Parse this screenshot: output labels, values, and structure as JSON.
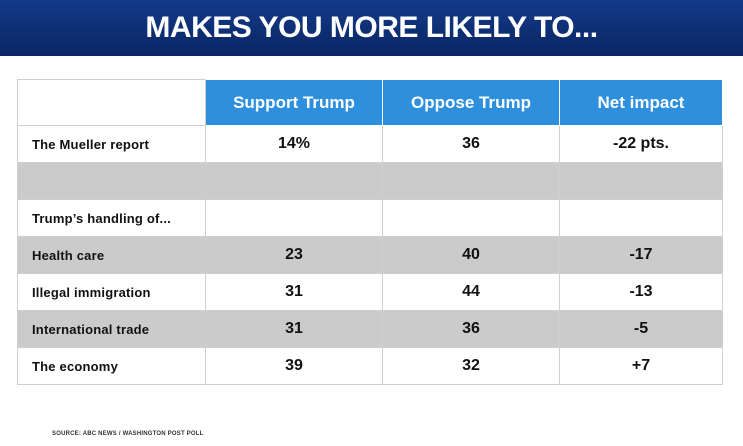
{
  "title": "MAKES YOU MORE LIKELY TO...",
  "source": "SOURCE: ABC NEWS / WASHINGTON POST POLL",
  "chart_data": {
    "type": "table",
    "columns": [
      "Support Trump",
      "Oppose Trump",
      "Net impact"
    ],
    "rows": [
      {
        "label": "The Mueller report",
        "values": [
          "14%",
          "36",
          "-22 pts."
        ],
        "shade": false
      },
      {
        "label": "",
        "values": [
          "",
          "",
          ""
        ],
        "shade": true
      },
      {
        "label": "Trump’s handling of...",
        "values": [
          "",
          "",
          ""
        ],
        "shade": false
      },
      {
        "label": "Health care",
        "values": [
          "23",
          "40",
          "-17"
        ],
        "shade": true
      },
      {
        "label": "Illegal immigration",
        "values": [
          "31",
          "44",
          "-13"
        ],
        "shade": false
      },
      {
        "label": "International trade",
        "values": [
          "31",
          "36",
          "-5"
        ],
        "shade": true
      },
      {
        "label": "The economy",
        "values": [
          "39",
          "32",
          "+7"
        ],
        "shade": false
      }
    ]
  },
  "colors": {
    "banner": "#0d2a6b",
    "header": "#2e8fdc",
    "shade": "#cbcbcb"
  }
}
